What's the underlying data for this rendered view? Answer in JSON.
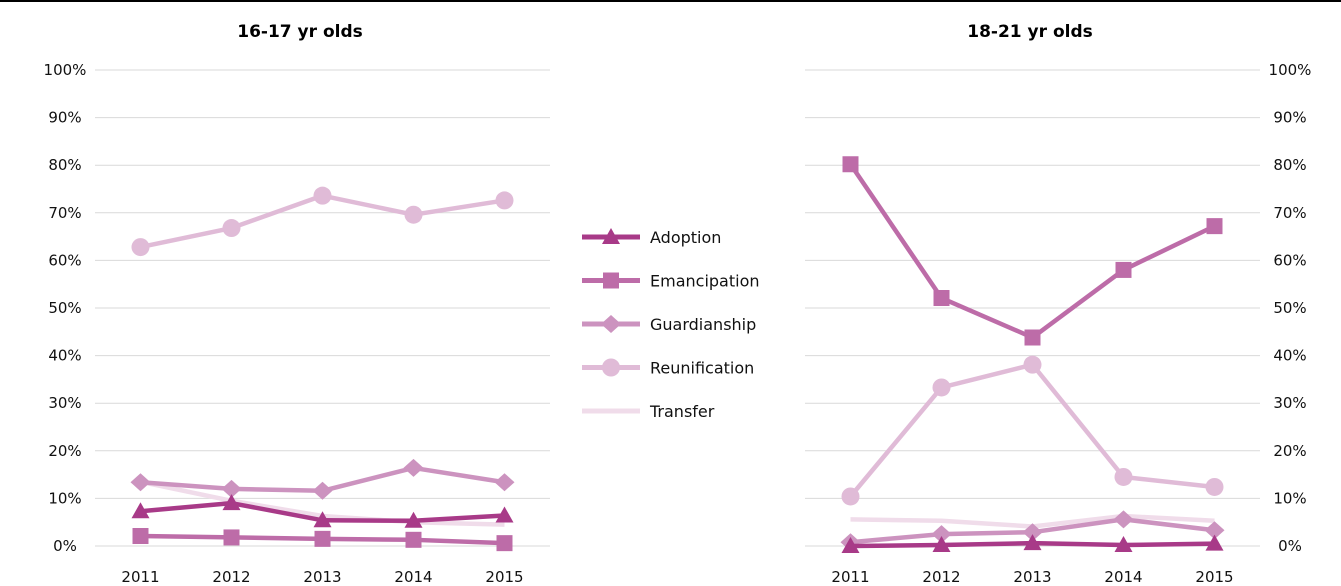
{
  "chart_data": [
    {
      "type": "line",
      "title": "16-17 yr olds",
      "axis_side": "left",
      "x": [
        "2011",
        "2012",
        "2013",
        "2014",
        "2015"
      ],
      "y_ticks": [
        "0%",
        "10%",
        "20%",
        "30%",
        "40%",
        "50%",
        "60%",
        "70%",
        "80%",
        "90%",
        "100%"
      ],
      "ylim": [
        0,
        100
      ],
      "grid": true,
      "series": [
        {
          "name": "Adoption",
          "values": [
            7.3,
            9.0,
            5.4,
            5.3,
            6.4
          ]
        },
        {
          "name": "Emancipation",
          "values": [
            2.1,
            1.8,
            1.5,
            1.3,
            0.6
          ]
        },
        {
          "name": "Guardianship",
          "values": [
            13.4,
            12.0,
            11.6,
            16.4,
            13.4
          ]
        },
        {
          "name": "Reunification",
          "values": [
            62.8,
            66.8,
            73.6,
            69.6,
            72.6
          ]
        },
        {
          "name": "Transfer",
          "values": [
            13.5,
            9.5,
            6.3,
            5.0,
            4.5
          ]
        }
      ]
    },
    {
      "type": "line",
      "title": "18-21 yr olds",
      "axis_side": "right",
      "x": [
        "2011",
        "2012",
        "2013",
        "2014",
        "2015"
      ],
      "y_ticks": [
        "0%",
        "10%",
        "20%",
        "30%",
        "40%",
        "50%",
        "60%",
        "70%",
        "80%",
        "90%",
        "100%"
      ],
      "ylim": [
        0,
        100
      ],
      "grid": true,
      "series": [
        {
          "name": "Adoption",
          "values": [
            0.0,
            0.2,
            0.6,
            0.2,
            0.5
          ]
        },
        {
          "name": "Emancipation",
          "values": [
            80.2,
            52.1,
            43.8,
            58.0,
            67.2
          ]
        },
        {
          "name": "Guardianship",
          "values": [
            0.8,
            2.5,
            2.9,
            5.6,
            3.3
          ]
        },
        {
          "name": "Reunification",
          "values": [
            10.4,
            33.3,
            38.1,
            14.5,
            12.4
          ]
        },
        {
          "name": "Transfer",
          "values": [
            5.6,
            5.3,
            4.1,
            6.3,
            5.3
          ]
        }
      ]
    }
  ],
  "legend": {
    "placement": "center",
    "items": [
      {
        "name": "Adoption",
        "marker": "triangle"
      },
      {
        "name": "Emancipation",
        "marker": "square"
      },
      {
        "name": "Guardianship",
        "marker": "diamond"
      },
      {
        "name": "Reunification",
        "marker": "circle"
      },
      {
        "name": "Transfer",
        "marker": "none"
      }
    ]
  },
  "colors": {
    "Adoption": "#a83a88",
    "Emancipation": "#bd6ca8",
    "Guardianship": "#cc93bf",
    "Reunification": "#e0bbd7",
    "Transfer": "#f0dcea",
    "grid": "#d9d9d9"
  }
}
